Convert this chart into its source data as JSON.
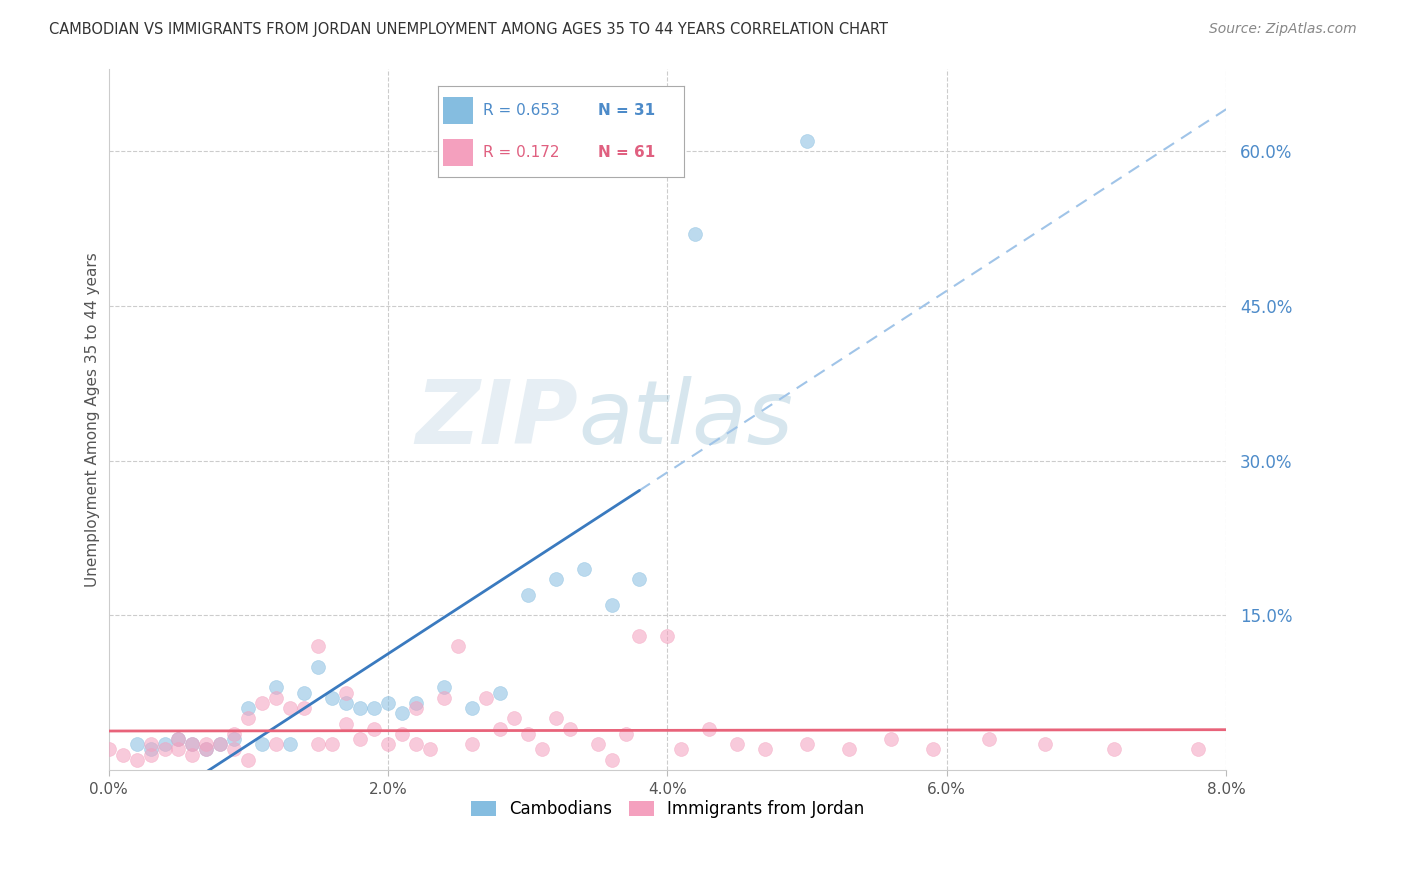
{
  "title": "CAMBODIAN VS IMMIGRANTS FROM JORDAN UNEMPLOYMENT AMONG AGES 35 TO 44 YEARS CORRELATION CHART",
  "source": "Source: ZipAtlas.com",
  "ylabel_left": "Unemployment Among Ages 35 to 44 years",
  "xlim": [
    0.0,
    0.08
  ],
  "ylim": [
    0.0,
    0.68
  ],
  "xticks": [
    0.0,
    0.02,
    0.04,
    0.06,
    0.08
  ],
  "xtick_labels": [
    "0.0%",
    "2.0%",
    "4.0%",
    "6.0%",
    "8.0%"
  ],
  "yticks_right": [
    0.0,
    0.15,
    0.3,
    0.45,
    0.6
  ],
  "ytick_labels_right": [
    "",
    "15.0%",
    "30.0%",
    "45.0%",
    "60.0%"
  ],
  "blue_color": "#85bde0",
  "pink_color": "#f4a0be",
  "blue_line_color": "#3a7abf",
  "pink_line_color": "#e8637a",
  "dashed_line_color": "#a0c4e8",
  "legend_R_blue": "R = 0.653",
  "legend_N_blue": "N = 31",
  "legend_R_pink": "R = 0.172",
  "legend_N_pink": "N = 61",
  "legend_label_blue": "Cambodians",
  "legend_label_pink": "Immigrants from Jordan",
  "blue_scatter_x": [
    0.002,
    0.003,
    0.004,
    0.005,
    0.006,
    0.007,
    0.008,
    0.009,
    0.01,
    0.011,
    0.012,
    0.013,
    0.014,
    0.015,
    0.016,
    0.017,
    0.018,
    0.019,
    0.02,
    0.021,
    0.022,
    0.024,
    0.026,
    0.028,
    0.03,
    0.032,
    0.034,
    0.036,
    0.038,
    0.042,
    0.05
  ],
  "blue_scatter_y": [
    0.025,
    0.02,
    0.025,
    0.03,
    0.025,
    0.02,
    0.025,
    0.03,
    0.06,
    0.025,
    0.08,
    0.025,
    0.075,
    0.1,
    0.07,
    0.065,
    0.06,
    0.06,
    0.065,
    0.055,
    0.065,
    0.08,
    0.06,
    0.075,
    0.17,
    0.185,
    0.195,
    0.16,
    0.185,
    0.52,
    0.61
  ],
  "pink_scatter_x": [
    0.0,
    0.001,
    0.002,
    0.003,
    0.003,
    0.004,
    0.005,
    0.005,
    0.006,
    0.006,
    0.007,
    0.007,
    0.008,
    0.009,
    0.009,
    0.01,
    0.01,
    0.011,
    0.012,
    0.012,
    0.013,
    0.014,
    0.015,
    0.015,
    0.016,
    0.017,
    0.017,
    0.018,
    0.019,
    0.02,
    0.021,
    0.022,
    0.022,
    0.023,
    0.024,
    0.025,
    0.026,
    0.027,
    0.028,
    0.029,
    0.03,
    0.031,
    0.032,
    0.033,
    0.035,
    0.036,
    0.037,
    0.038,
    0.04,
    0.041,
    0.043,
    0.045,
    0.047,
    0.05,
    0.053,
    0.056,
    0.059,
    0.063,
    0.067,
    0.072,
    0.078
  ],
  "pink_scatter_y": [
    0.02,
    0.015,
    0.01,
    0.025,
    0.015,
    0.02,
    0.03,
    0.02,
    0.025,
    0.015,
    0.02,
    0.025,
    0.025,
    0.02,
    0.035,
    0.01,
    0.05,
    0.065,
    0.07,
    0.025,
    0.06,
    0.06,
    0.025,
    0.12,
    0.025,
    0.045,
    0.075,
    0.03,
    0.04,
    0.025,
    0.035,
    0.06,
    0.025,
    0.02,
    0.07,
    0.12,
    0.025,
    0.07,
    0.04,
    0.05,
    0.035,
    0.02,
    0.05,
    0.04,
    0.025,
    0.01,
    0.035,
    0.13,
    0.13,
    0.02,
    0.04,
    0.025,
    0.02,
    0.025,
    0.02,
    0.03,
    0.02,
    0.03,
    0.025,
    0.02,
    0.02
  ],
  "watermark_zip": "ZIP",
  "watermark_atlas": "atlas",
  "background_color": "#ffffff",
  "grid_color": "#cccccc",
  "blue_line_x_solid_end": 0.038,
  "blue_line_x_dash_end": 0.08
}
